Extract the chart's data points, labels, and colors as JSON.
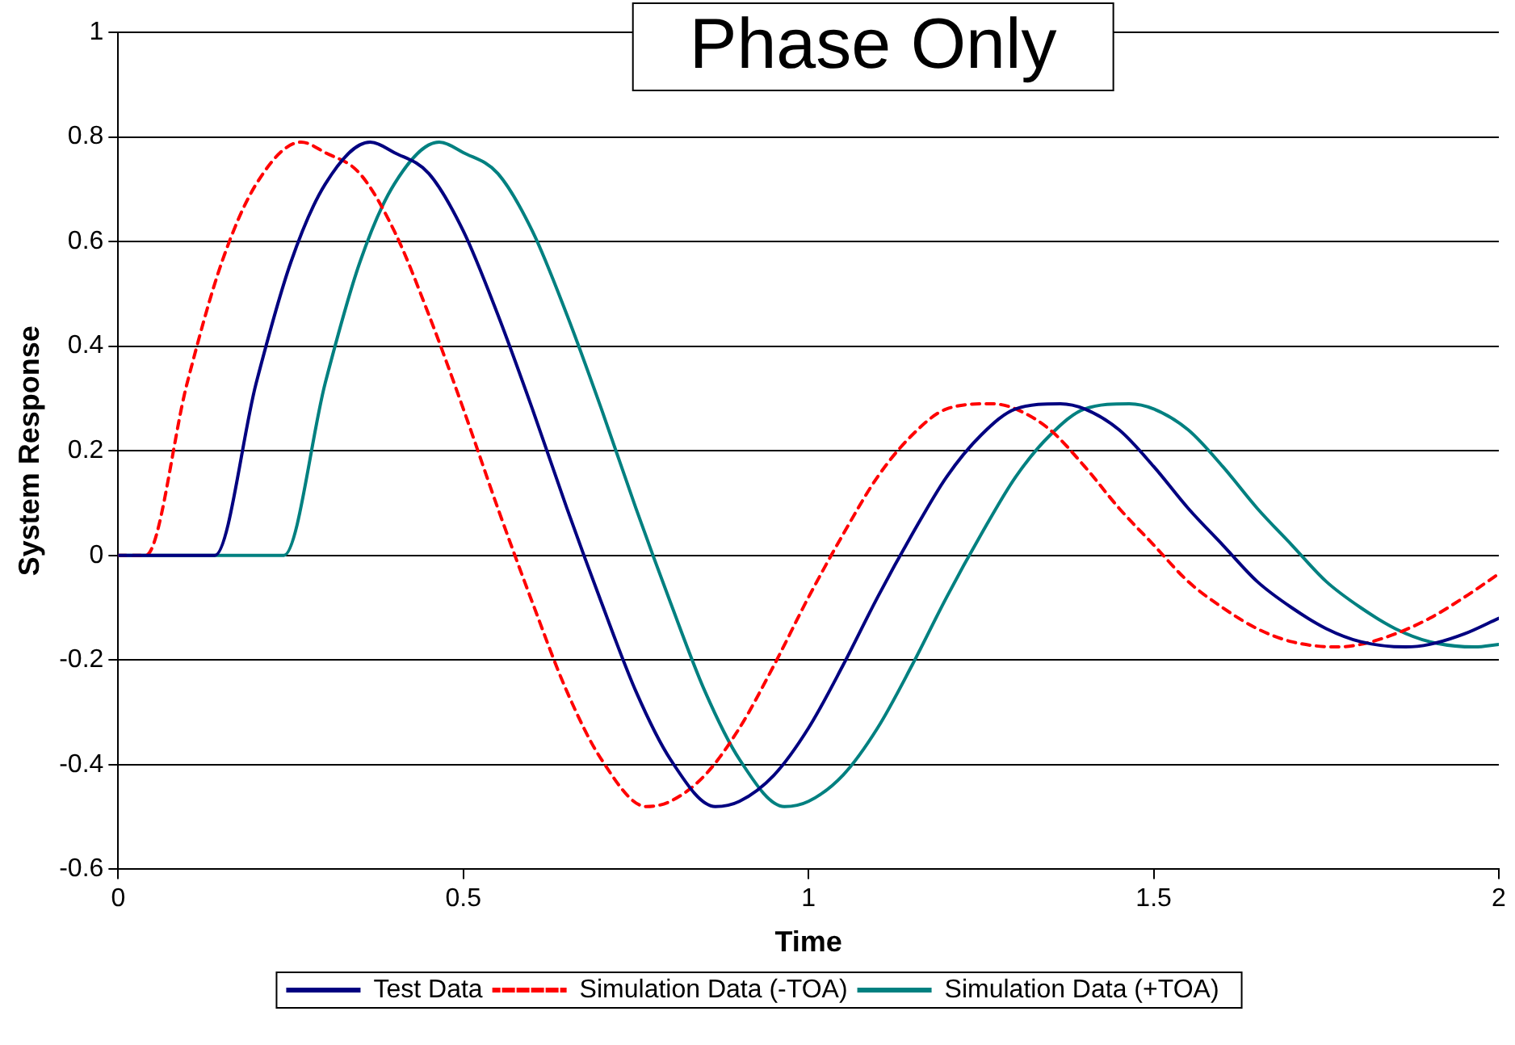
{
  "chart_data": {
    "type": "line",
    "title": "Phase Only",
    "xlabel": "Time",
    "ylabel": "System Response",
    "xlim": [
      0,
      2
    ],
    "xticks": [
      0,
      0.5,
      1,
      1.5,
      2
    ],
    "ylim": [
      -0.6,
      1
    ],
    "yticks": [
      -0.6,
      -0.4,
      -0.2,
      0,
      0.2,
      0.4,
      0.6,
      0.8,
      1
    ],
    "grid": "y",
    "legend": "bottom",
    "marker": "none",
    "series": [
      {
        "name": "Test Data",
        "color": "#000080",
        "line_style": "solid",
        "x": [
          0,
          0.14,
          0.2,
          0.25,
          0.3,
          0.365,
          0.4,
          0.45,
          0.5,
          0.55,
          0.6,
          0.65,
          0.7,
          0.75,
          0.8,
          0.865,
          0.9,
          0.95,
          1.0,
          1.05,
          1.1,
          1.15,
          1.2,
          1.25,
          1.3,
          1.365,
          1.4,
          1.45,
          1.5,
          1.55,
          1.6,
          1.65,
          1.7,
          1.75,
          1.8,
          1.865,
          1.9,
          1.95,
          2.0
        ],
        "values": [
          0,
          0,
          0.33,
          0.56,
          0.71,
          0.79,
          0.77,
          0.73,
          0.62,
          0.46,
          0.28,
          0.09,
          -0.09,
          -0.26,
          -0.39,
          -0.48,
          -0.47,
          -0.42,
          -0.33,
          -0.21,
          -0.08,
          0.04,
          0.15,
          0.23,
          0.28,
          0.29,
          0.28,
          0.24,
          0.17,
          0.09,
          0.02,
          -0.05,
          -0.1,
          -0.14,
          -0.165,
          -0.175,
          -0.17,
          -0.15,
          -0.12
        ]
      },
      {
        "name": "Simulation Data (-TOA)",
        "color": "#ff0000",
        "line_style": "dashed",
        "x": [
          0,
          0.04,
          0.1,
          0.15,
          0.2,
          0.265,
          0.3,
          0.35,
          0.4,
          0.45,
          0.5,
          0.55,
          0.6,
          0.65,
          0.7,
          0.765,
          0.8,
          0.85,
          0.9,
          0.95,
          1.0,
          1.05,
          1.1,
          1.15,
          1.2,
          1.265,
          1.3,
          1.35,
          1.4,
          1.45,
          1.5,
          1.55,
          1.6,
          1.65,
          1.7,
          1.765,
          1.8,
          1.85,
          1.9,
          1.95,
          2.0
        ],
        "values": [
          0,
          0,
          0.33,
          0.56,
          0.71,
          0.79,
          0.77,
          0.73,
          0.62,
          0.46,
          0.28,
          0.09,
          -0.09,
          -0.26,
          -0.39,
          -0.48,
          -0.47,
          -0.42,
          -0.33,
          -0.21,
          -0.08,
          0.04,
          0.15,
          0.23,
          0.28,
          0.29,
          0.28,
          0.24,
          0.17,
          0.09,
          0.02,
          -0.05,
          -0.1,
          -0.14,
          -0.165,
          -0.175,
          -0.17,
          -0.15,
          -0.12,
          -0.08,
          -0.035
        ]
      },
      {
        "name": "Simulation Data (+TOA)",
        "color": "#008080",
        "line_style": "solid",
        "x": [
          0,
          0.24,
          0.3,
          0.35,
          0.4,
          0.465,
          0.5,
          0.55,
          0.6,
          0.65,
          0.7,
          0.75,
          0.8,
          0.85,
          0.9,
          0.965,
          1.0,
          1.05,
          1.1,
          1.15,
          1.2,
          1.25,
          1.3,
          1.35,
          1.4,
          1.465,
          1.5,
          1.55,
          1.6,
          1.65,
          1.7,
          1.75,
          1.8,
          1.85,
          1.9,
          1.965,
          2.0
        ],
        "values": [
          0,
          0,
          0.33,
          0.56,
          0.71,
          0.79,
          0.77,
          0.73,
          0.62,
          0.46,
          0.28,
          0.09,
          -0.09,
          -0.26,
          -0.39,
          -0.48,
          -0.47,
          -0.42,
          -0.33,
          -0.21,
          -0.08,
          0.04,
          0.15,
          0.23,
          0.28,
          0.29,
          0.28,
          0.24,
          0.17,
          0.09,
          0.02,
          -0.05,
          -0.1,
          -0.14,
          -0.165,
          -0.175,
          -0.17
        ]
      }
    ]
  }
}
